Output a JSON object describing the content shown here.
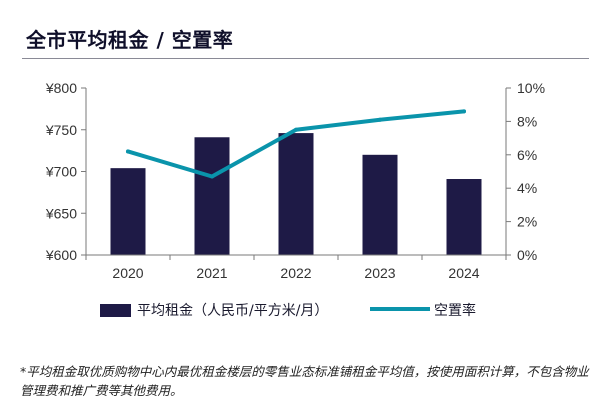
{
  "title": "全市平均租金 / 空置率",
  "footnote": "*平均租金取优质购物中心内最优租金楼层的零售业态标准铺租金平均值，按使用面积计算，不包含物业管理费和推广费等其他费用。",
  "chart_data": {
    "type": "bar",
    "categories": [
      "2020",
      "2021",
      "2022",
      "2023",
      "2024"
    ],
    "series": [
      {
        "name": "平均租金（人民币/平方米/月）",
        "type": "bar",
        "axis": "left",
        "values": [
          704,
          741,
          746,
          720,
          691
        ],
        "color": "#1e1a46"
      },
      {
        "name": "空置率",
        "type": "line",
        "axis": "right",
        "values": [
          6.2,
          4.7,
          7.5,
          8.1,
          8.6
        ],
        "color": "#0a94ab"
      }
    ],
    "y_left": {
      "ticks": [
        "¥600",
        "¥650",
        "¥700",
        "¥750",
        "¥800"
      ],
      "ylim": [
        600,
        800
      ]
    },
    "y_right": {
      "ticks": [
        "0%",
        "2%",
        "4%",
        "6%",
        "8%",
        "10%"
      ],
      "ylim": [
        0,
        10
      ]
    },
    "grid": false,
    "legend_position": "bottom"
  }
}
